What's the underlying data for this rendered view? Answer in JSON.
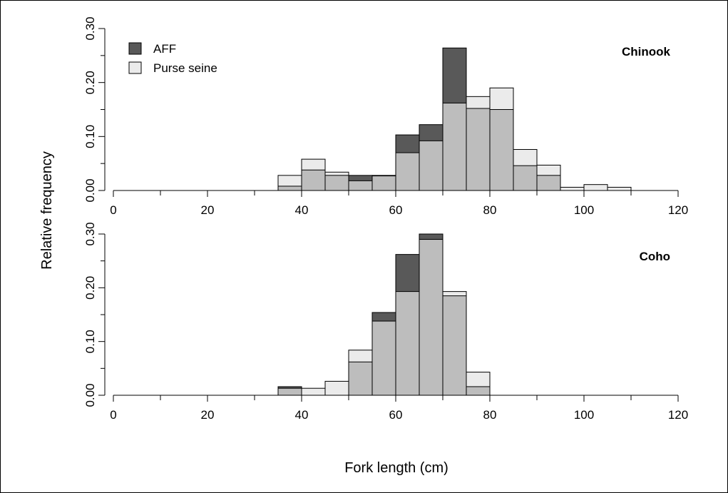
{
  "chart_data": [
    {
      "type": "bar",
      "panel": "Chinook",
      "bins_x": [
        35,
        40,
        45,
        50,
        55,
        60,
        65,
        70,
        75,
        80,
        85,
        90,
        95,
        100,
        105
      ],
      "bin_width": 5,
      "series": [
        {
          "name": "AFF",
          "values": [
            0.008,
            0.038,
            0.028,
            0.028,
            0.027,
            0.103,
            0.122,
            0.264,
            0.152,
            0.15,
            0.046,
            0.028,
            0.0,
            0.0,
            0.0
          ]
        },
        {
          "name": "Purse seine",
          "values": [
            0.028,
            0.058,
            0.034,
            0.018,
            0.028,
            0.07,
            0.092,
            0.162,
            0.174,
            0.19,
            0.076,
            0.047,
            0.006,
            0.011,
            0.006
          ]
        }
      ],
      "xlim": [
        0,
        120
      ],
      "ylim": [
        0,
        0.3
      ],
      "xticks": [
        "0",
        "20",
        "40",
        "60",
        "80",
        "100",
        "120"
      ],
      "yticks": [
        "0.00",
        "0.10",
        "0.20",
        "0.30"
      ]
    },
    {
      "type": "bar",
      "panel": "Coho",
      "bins_x": [
        35,
        40,
        45,
        50,
        55,
        60,
        65,
        70,
        75
      ],
      "bin_width": 5,
      "series": [
        {
          "name": "AFF",
          "values": [
            0.016,
            0.0,
            0.0,
            0.062,
            0.154,
            0.262,
            0.3,
            0.185,
            0.016
          ]
        },
        {
          "name": "Purse seine",
          "values": [
            0.013,
            0.013,
            0.026,
            0.084,
            0.138,
            0.193,
            0.29,
            0.193,
            0.043
          ]
        }
      ],
      "xlim": [
        0,
        120
      ],
      "ylim": [
        0,
        0.3
      ],
      "xticks": [
        "0",
        "20",
        "40",
        "60",
        "80",
        "100",
        "120"
      ],
      "yticks": [
        "0.00",
        "0.10",
        "0.20",
        "0.30"
      ]
    }
  ],
  "labels": {
    "ylabel": "Relative frequency",
    "xlabel": "Fork length (cm)",
    "panel_top": "Chinook",
    "panel_bottom": "Coho",
    "legend_aff": "AFF",
    "legend_ps": "Purse seine"
  },
  "colors": {
    "aff": "#595959",
    "purse_seine": "#ebebeb",
    "overlap": "#bdbdbd"
  }
}
